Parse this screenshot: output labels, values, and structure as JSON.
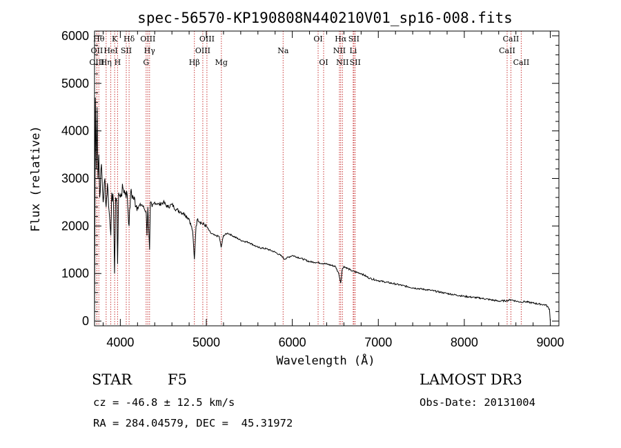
{
  "chart_data": {
    "type": "line",
    "title": "spec-56570-KP190808N440210V01_sp16-008.fits",
    "xlabel": "Wavelength (Å)",
    "ylabel": "Flux (relative)",
    "xlim": [
      3700,
      9100
    ],
    "ylim": [
      -100,
      6100
    ],
    "xticks": [
      4000,
      5000,
      6000,
      7000,
      8000,
      9000
    ],
    "yticks": [
      0,
      1000,
      2000,
      3000,
      4000,
      5000,
      6000
    ],
    "series": [
      {
        "name": "flux",
        "x": [
          3700,
          3710,
          3720,
          3730,
          3740,
          3750,
          3760,
          3780,
          3800,
          3820,
          3835,
          3850,
          3870,
          3889,
          3900,
          3920,
          3933,
          3945,
          3960,
          3968,
          3980,
          4000,
          4030,
          4060,
          4080,
          4102,
          4120,
          4150,
          4200,
          4250,
          4300,
          4310,
          4320,
          4340,
          4350,
          4370,
          4400,
          4450,
          4500,
          4550,
          4600,
          4650,
          4700,
          4750,
          4800,
          4840,
          4861,
          4880,
          4900,
          4950,
          5000,
          5050,
          5100,
          5150,
          5172,
          5200,
          5250,
          5300,
          5400,
          5500,
          5600,
          5700,
          5800,
          5890,
          5900,
          6000,
          6100,
          6200,
          6300,
          6400,
          6500,
          6540,
          6563,
          6580,
          6600,
          6700,
          6800,
          6900,
          7000,
          7200,
          7400,
          7600,
          7800,
          8000,
          8200,
          8400,
          8498,
          8542,
          8600,
          8662,
          8700,
          8800,
          8900,
          8950,
          8990,
          9000
        ],
        "y": [
          0,
          4700,
          3200,
          4500,
          3000,
          3500,
          2600,
          3300,
          2500,
          3000,
          2400,
          2900,
          2300,
          1800,
          2700,
          2500,
          1000,
          2600,
          2400,
          1200,
          2700,
          2600,
          2800,
          2700,
          2650,
          2000,
          2700,
          2600,
          2400,
          2450,
          2300,
          1800,
          2400,
          1500,
          2500,
          2400,
          2500,
          2450,
          2500,
          2400,
          2450,
          2350,
          2300,
          2250,
          2150,
          1900,
          1300,
          2000,
          2150,
          2050,
          2000,
          1850,
          1800,
          1780,
          1550,
          1800,
          1850,
          1800,
          1700,
          1650,
          1550,
          1520,
          1450,
          1350,
          1300,
          1380,
          1320,
          1250,
          1230,
          1200,
          1150,
          1000,
          800,
          1080,
          1150,
          1050,
          1000,
          900,
          850,
          780,
          700,
          650,
          580,
          520,
          480,
          420,
          430,
          450,
          420,
          400,
          410,
          380,
          350,
          340,
          250,
          0
        ]
      }
    ],
    "spectral_lines": [
      {
        "label": "OII",
        "wave": 3727,
        "row": 1
      },
      {
        "label": "OIII",
        "wave": 3727,
        "row": 2
      },
      {
        "label": "Hθ",
        "wave": 3750,
        "row": 0
      },
      {
        "label": "Hη",
        "wave": 3835,
        "row": 2
      },
      {
        "label": "HeI",
        "wave": 3889,
        "row": 1
      },
      {
        "label": "K",
        "wave": 3934,
        "row": 0
      },
      {
        "label": "H",
        "wave": 3968,
        "row": 2
      },
      {
        "label": "SII",
        "wave": 4069,
        "row": 1
      },
      {
        "label": "Hδ",
        "wave": 4102,
        "row": 0
      },
      {
        "label": "G",
        "wave": 4300,
        "row": 2
      },
      {
        "label": "OIII",
        "wave": 4320,
        "row": 0
      },
      {
        "label": "Hγ",
        "wave": 4340,
        "row": 1
      },
      {
        "label": "Hβ",
        "wave": 4861,
        "row": 2
      },
      {
        "label": "OIII",
        "wave": 4959,
        "row": 1
      },
      {
        "label": "OIII",
        "wave": 5007,
        "row": 0
      },
      {
        "label": "Mg",
        "wave": 5175,
        "row": 2
      },
      {
        "label": "Na",
        "wave": 5893,
        "row": 1
      },
      {
        "label": "OI",
        "wave": 6300,
        "row": 0
      },
      {
        "label": "OI",
        "wave": 6364,
        "row": 2
      },
      {
        "label": "NII",
        "wave": 6548,
        "row": 1
      },
      {
        "label": "Hα",
        "wave": 6563,
        "row": 0
      },
      {
        "label": "NII",
        "wave": 6583,
        "row": 2
      },
      {
        "label": "SII",
        "wave": 6716,
        "row": 0
      },
      {
        "label": "Li",
        "wave": 6708,
        "row": 1
      },
      {
        "label": "SII",
        "wave": 6731,
        "row": 2
      },
      {
        "label": "CaII",
        "wave": 8498,
        "row": 1
      },
      {
        "label": "CaII",
        "wave": 8542,
        "row": 0
      },
      {
        "label": "CaII",
        "wave": 8662,
        "row": 2
      }
    ]
  },
  "info": {
    "object_class": "STAR",
    "subclass": "F5",
    "survey": "LAMOST DR3",
    "redshift": "cz = -46.8 ± 12.5 km/s",
    "obs_date": "Obs-Date: 20131004",
    "coords": "RA = 284.04579, DEC =  45.31972"
  },
  "colors": {
    "line_marker": "#c83232",
    "spectrum": "#000000"
  }
}
